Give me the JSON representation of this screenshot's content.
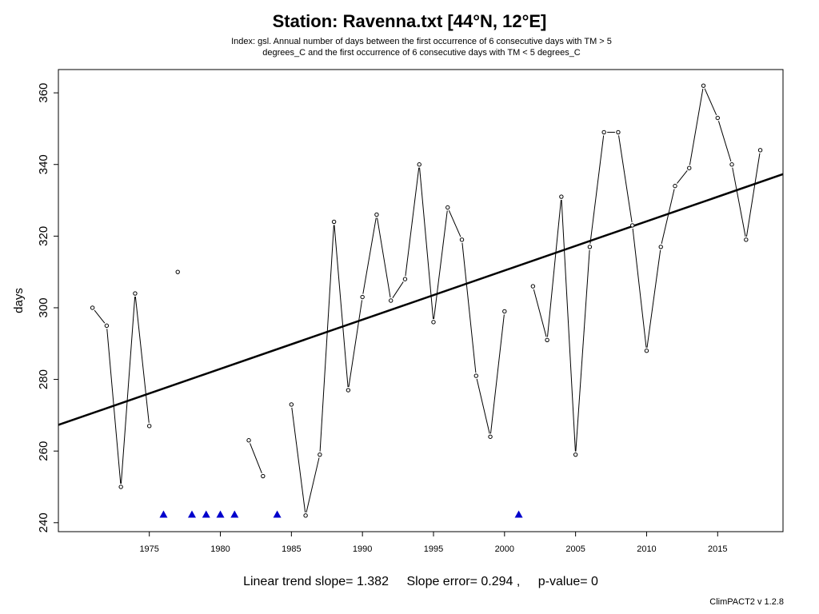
{
  "chart_data": {
    "type": "line",
    "title": "Station: Ravenna.txt [44°N, 12°E]",
    "subtitle": [
      "Index: gsl. Annual number of days between the first occurrence of 6 consecutive days with TM > 5",
      "degrees_C and the first occurrence of 6 consecutive days with TM < 5 degrees_C"
    ],
    "xlabel": "",
    "ylabel": "days",
    "xlim": [
      1968.6,
      2019.6
    ],
    "ylim": [
      237.5,
      366.5
    ],
    "x_ticks": [
      1975,
      1980,
      1985,
      1990,
      1995,
      2000,
      2005,
      2010,
      2015
    ],
    "y_ticks": [
      240,
      260,
      280,
      300,
      320,
      340,
      360
    ],
    "grid": false,
    "series": [
      {
        "points": [
          [
            1971,
            300
          ],
          [
            1972,
            295
          ],
          [
            1973,
            250
          ],
          [
            1974,
            304
          ],
          [
            1975,
            267
          ],
          [
            1976,
            null
          ],
          [
            1977,
            310
          ],
          [
            1978,
            null
          ],
          [
            1979,
            null
          ],
          [
            1980,
            null
          ],
          [
            1981,
            null
          ],
          [
            1982,
            263
          ],
          [
            1983,
            253
          ],
          [
            1984,
            null
          ],
          [
            1985,
            273
          ],
          [
            1986,
            242
          ],
          [
            1987,
            259
          ],
          [
            1988,
            324
          ],
          [
            1989,
            277
          ],
          [
            1990,
            303
          ],
          [
            1991,
            326
          ],
          [
            1992,
            302
          ],
          [
            1993,
            308
          ],
          [
            1994,
            340
          ],
          [
            1995,
            296
          ],
          [
            1996,
            328
          ],
          [
            1997,
            319
          ],
          [
            1998,
            281
          ],
          [
            1999,
            264
          ],
          [
            2000,
            299
          ],
          [
            2001,
            null
          ],
          [
            2002,
            306
          ],
          [
            2003,
            291
          ],
          [
            2004,
            331
          ],
          [
            2005,
            259
          ],
          [
            2006,
            317
          ],
          [
            2007,
            349
          ],
          [
            2008,
            349
          ],
          [
            2009,
            323
          ],
          [
            2010,
            288
          ],
          [
            2011,
            317
          ],
          [
            2012,
            334
          ],
          [
            2013,
            339
          ],
          [
            2014,
            362
          ],
          [
            2015,
            353
          ],
          [
            2016,
            340
          ],
          [
            2017,
            319
          ],
          [
            2018,
            344
          ]
        ],
        "color": "#000000"
      }
    ],
    "trend_line": {
      "x": [
        1968.6,
        2019.6
      ],
      "y": [
        267.3,
        337.3
      ],
      "color": "#000000"
    },
    "missing_markers": {
      "years": [
        1976,
        1978,
        1979,
        1980,
        1981,
        1984,
        2001
      ],
      "y": 242.3,
      "color": "#0000cc"
    },
    "stats": {
      "slope": "Linear trend slope= 1.382",
      "error": "Slope error= 0.294 ,",
      "pvalue": "p-value= 0"
    },
    "credit": "ClimPACT2 v 1.2.8"
  }
}
